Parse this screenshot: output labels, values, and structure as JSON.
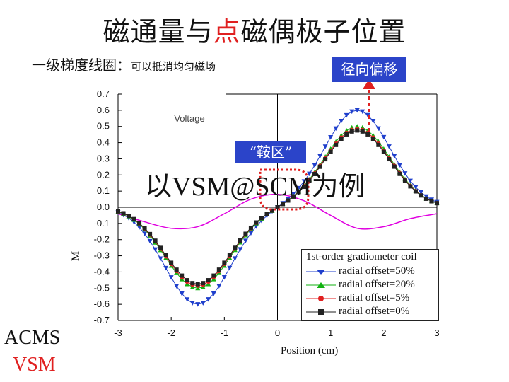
{
  "slide": {
    "title_pre": "磁通量与",
    "title_highlight": "点",
    "title_post": "磁偶极子位置",
    "subtitle_main": "一级梯度线圈：",
    "subtitle_small": "可以抵消均匀磁场",
    "radial_label": "径向偏移",
    "saddle_label": "“鞍区”",
    "example_label": "以VSM@SCM为例",
    "acms_label": "ACMS",
    "vsm_label": "VSM",
    "colors": {
      "highlight": "#e02020",
      "box": "#2b44c9",
      "dotted": "#e02020"
    }
  },
  "chart_data": {
    "type": "line",
    "title": "",
    "xlabel": "Position (cm)",
    "ylabel": "M",
    "background_text": "Voltage",
    "xlim": [
      -3,
      3
    ],
    "ylim": [
      -0.7,
      0.7
    ],
    "xticks": [
      "-3",
      "-2",
      "-1",
      "0",
      "1",
      "2",
      "3"
    ],
    "yticks": [
      "0.7",
      "0.6",
      "0.5",
      "0.4",
      "0.3",
      "0.2",
      "0.1",
      "0.0",
      "-0.1",
      "-0.2",
      "-0.3",
      "-0.4",
      "-0.5",
      "-0.6",
      "-0.7"
    ],
    "legend": {
      "title": "1st-order gradiometer coil",
      "placement": "bottom-right"
    },
    "series": [
      {
        "name": "radial offset=50%",
        "color": "#1f3fcc",
        "marker": "triangle-down",
        "peak": 0.6
      },
      {
        "name": "radial offset=20%",
        "color": "#11b211",
        "marker": "triangle-up",
        "peak": 0.5
      },
      {
        "name": "radial offset=5%",
        "color": "#e02020",
        "marker": "circle",
        "peak": 0.485
      },
      {
        "name": "radial offset=0%",
        "color": "#222222",
        "marker": "square",
        "peak": 0.475
      }
    ],
    "reference_curve": {
      "color": "#e000e0",
      "x": [
        -3,
        -2.5,
        -2.0,
        -1.5,
        -1.0,
        -0.5,
        0,
        0.5,
        1.0,
        1.5,
        2.0,
        2.5,
        3.0
      ],
      "y": [
        -0.04,
        -0.09,
        -0.13,
        -0.12,
        -0.04,
        0.05,
        0.08,
        0.04,
        -0.05,
        -0.13,
        -0.12,
        -0.07,
        -0.04
      ]
    },
    "marker_x": [
      -3.0,
      -2.9,
      -2.8,
      -2.7,
      -2.6,
      -2.5,
      -2.4,
      -2.3,
      -2.2,
      -2.1,
      -2.0,
      -1.9,
      -1.8,
      -1.7,
      -1.6,
      -1.5,
      -1.4,
      -1.3,
      -1.2,
      -1.1,
      -1.0,
      -0.9,
      -0.8,
      -0.7,
      -0.6,
      -0.5,
      -0.4,
      -0.3,
      -0.2,
      -0.1,
      0.0,
      0.1,
      0.2,
      0.3,
      0.4,
      0.5,
      0.6,
      0.7,
      0.8,
      0.9,
      1.0,
      1.1,
      1.2,
      1.3,
      1.4,
      1.5,
      1.6,
      1.7,
      1.8,
      1.9,
      2.0,
      2.1,
      2.2,
      2.3,
      2.4,
      2.5,
      2.6,
      2.7,
      2.8,
      2.9,
      3.0
    ]
  }
}
